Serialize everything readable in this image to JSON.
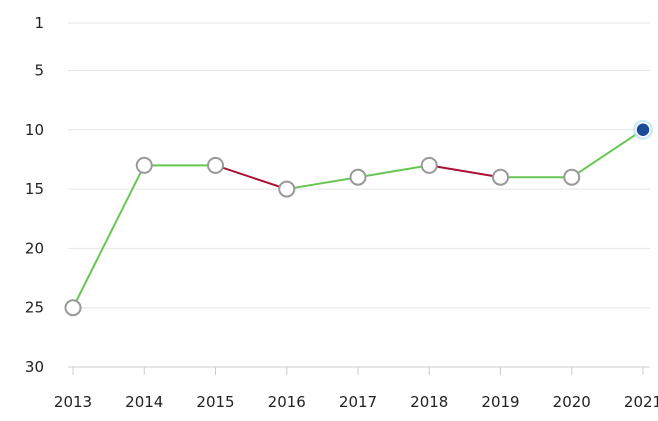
{
  "chart_data": {
    "type": "line",
    "title": "",
    "xlabel": "",
    "ylabel": "",
    "y_reversed": true,
    "ylim": [
      1,
      30
    ],
    "y_ticks": [
      "1",
      "5",
      "10",
      "15",
      "20",
      "25",
      "30"
    ],
    "x_ticks": [
      "2013",
      "2014",
      "2015",
      "2016",
      "2017",
      "2018",
      "2019",
      "2020",
      "2021"
    ],
    "grid": true,
    "legend": "none",
    "series": [
      {
        "x": [
          "2013",
          "2014",
          "2015",
          "2016",
          "2017",
          "2018",
          "2019",
          "2020",
          "2021"
        ],
        "values": [
          25,
          13,
          13,
          15,
          14,
          13,
          14,
          14,
          10
        ]
      }
    ],
    "highlight": {
      "x": "2021",
      "value": 10
    },
    "colors": {
      "improve": "#66c653",
      "decline": "#aa1133",
      "marker_fill": "#ffffff",
      "marker_stroke": "#999999",
      "highlight_fill": "#1a4a9a",
      "highlight_glow": "#bfe3f7"
    }
  }
}
